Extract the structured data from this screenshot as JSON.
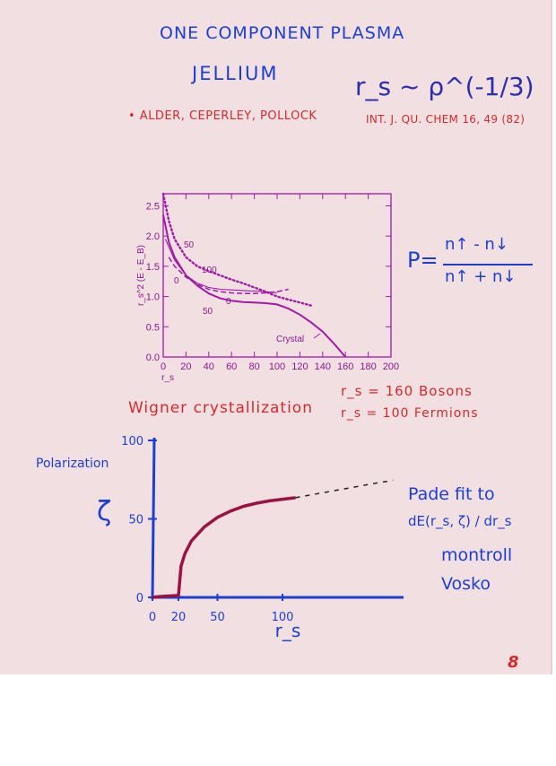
{
  "header": {
    "title_line1": "ONE COMPONENT PLASMA",
    "title_line2": "JELLIUM",
    "rs_relation": "r_s ~ ρ^(-1/3)",
    "reference_authors": "• ALDER, CEPERLEY, POLLOCK",
    "reference_journal": "INT. J. QU. CHEM 16, 49 (82)"
  },
  "polarization_formula": {
    "lhs": "P=",
    "numerator": "n↑ - n↓",
    "denominator": "n↑ + n↓"
  },
  "wigner": {
    "text": "Wigner crystallization",
    "bosons": "r_s = 160   Bosons",
    "fermions": "r_s = 100   Fermions"
  },
  "right_notes": {
    "line1": "Pade fit to",
    "line2": "dE(r_s, ζ) / dr_s",
    "line3": "montroll",
    "line4": "Vosko"
  },
  "page_number": "8",
  "colors": {
    "paper": "#f1dfe1",
    "plot_magenta": "#a21aa5",
    "ink_blue": "#1d3fcf",
    "ink_red": "#d42a2a",
    "curve_maroon": "#9b1244"
  },
  "chart_data": [
    {
      "type": "line",
      "title": "",
      "xlabel": "r_s",
      "ylabel": "r_s^2 (E - E_B)",
      "xlim": [
        0,
        200
      ],
      "ylim": [
        0,
        2.7
      ],
      "x_ticks": [
        "0",
        "20",
        "40",
        "60",
        "80",
        "100",
        "120",
        "140",
        "160",
        "180",
        "200"
      ],
      "y_ticks": [
        "0.0",
        "0.5",
        "1.0",
        "1.5",
        "2.0",
        "2.5"
      ],
      "grid": false,
      "annotations": [
        "50",
        "100",
        "0",
        "0",
        "50",
        "Crystal"
      ],
      "series": [
        {
          "style": "solid",
          "x": [
            0,
            5,
            10,
            20,
            30,
            40,
            50,
            60,
            70,
            80,
            90,
            100,
            110,
            120,
            130,
            140,
            150,
            160
          ],
          "y": [
            2.35,
            1.9,
            1.65,
            1.35,
            1.18,
            1.05,
            0.97,
            0.93,
            0.91,
            0.9,
            0.89,
            0.87,
            0.8,
            0.7,
            0.57,
            0.42,
            0.22,
            0.0
          ]
        },
        {
          "style": "dotted",
          "x": [
            0,
            5,
            10,
            20,
            30,
            40,
            50,
            60,
            70,
            80,
            90,
            100,
            110,
            120,
            130
          ],
          "y": [
            2.7,
            2.25,
            1.95,
            1.65,
            1.5,
            1.42,
            1.35,
            1.28,
            1.22,
            1.15,
            1.08,
            1.0,
            0.95,
            0.9,
            0.85
          ]
        },
        {
          "style": "dashed",
          "x": [
            5,
            10,
            20,
            30,
            40,
            50,
            60,
            70,
            80,
            90,
            100,
            110
          ],
          "y": [
            1.65,
            1.5,
            1.32,
            1.2,
            1.12,
            1.08,
            1.06,
            1.05,
            1.05,
            1.06,
            1.08,
            1.12
          ]
        },
        {
          "style": "solid-thin",
          "x": [
            2,
            10,
            20,
            30,
            40,
            50,
            60,
            70,
            80,
            90,
            100
          ],
          "y": [
            1.95,
            1.6,
            1.35,
            1.22,
            1.15,
            1.12,
            1.11,
            1.1,
            1.09,
            1.08,
            1.06
          ]
        }
      ]
    },
    {
      "type": "line",
      "title": "",
      "xlabel": "r_s",
      "ylabel": "ζ",
      "y_axis_title": "Polarization",
      "x_ticks": [
        "0",
        "20",
        "50",
        "100"
      ],
      "y_ticks": [
        "0",
        "50",
        "100"
      ],
      "xlim": [
        0,
        200
      ],
      "ylim": [
        0,
        100
      ],
      "series": [
        {
          "style": "solid",
          "x": [
            0,
            5,
            10,
            15,
            20,
            22,
            25,
            30,
            40,
            50,
            60,
            70,
            80,
            90,
            100,
            110
          ],
          "y": [
            0,
            0.5,
            0.8,
            1.0,
            1.2,
            20,
            28,
            36,
            45,
            51,
            55,
            58,
            60,
            61.5,
            62.5,
            63.5
          ]
        },
        {
          "style": "dashed",
          "x": [
            110,
            130,
            150,
            170,
            185
          ],
          "y": [
            63.5,
            66.5,
            69.5,
            72.5,
            74.5
          ]
        }
      ]
    }
  ]
}
